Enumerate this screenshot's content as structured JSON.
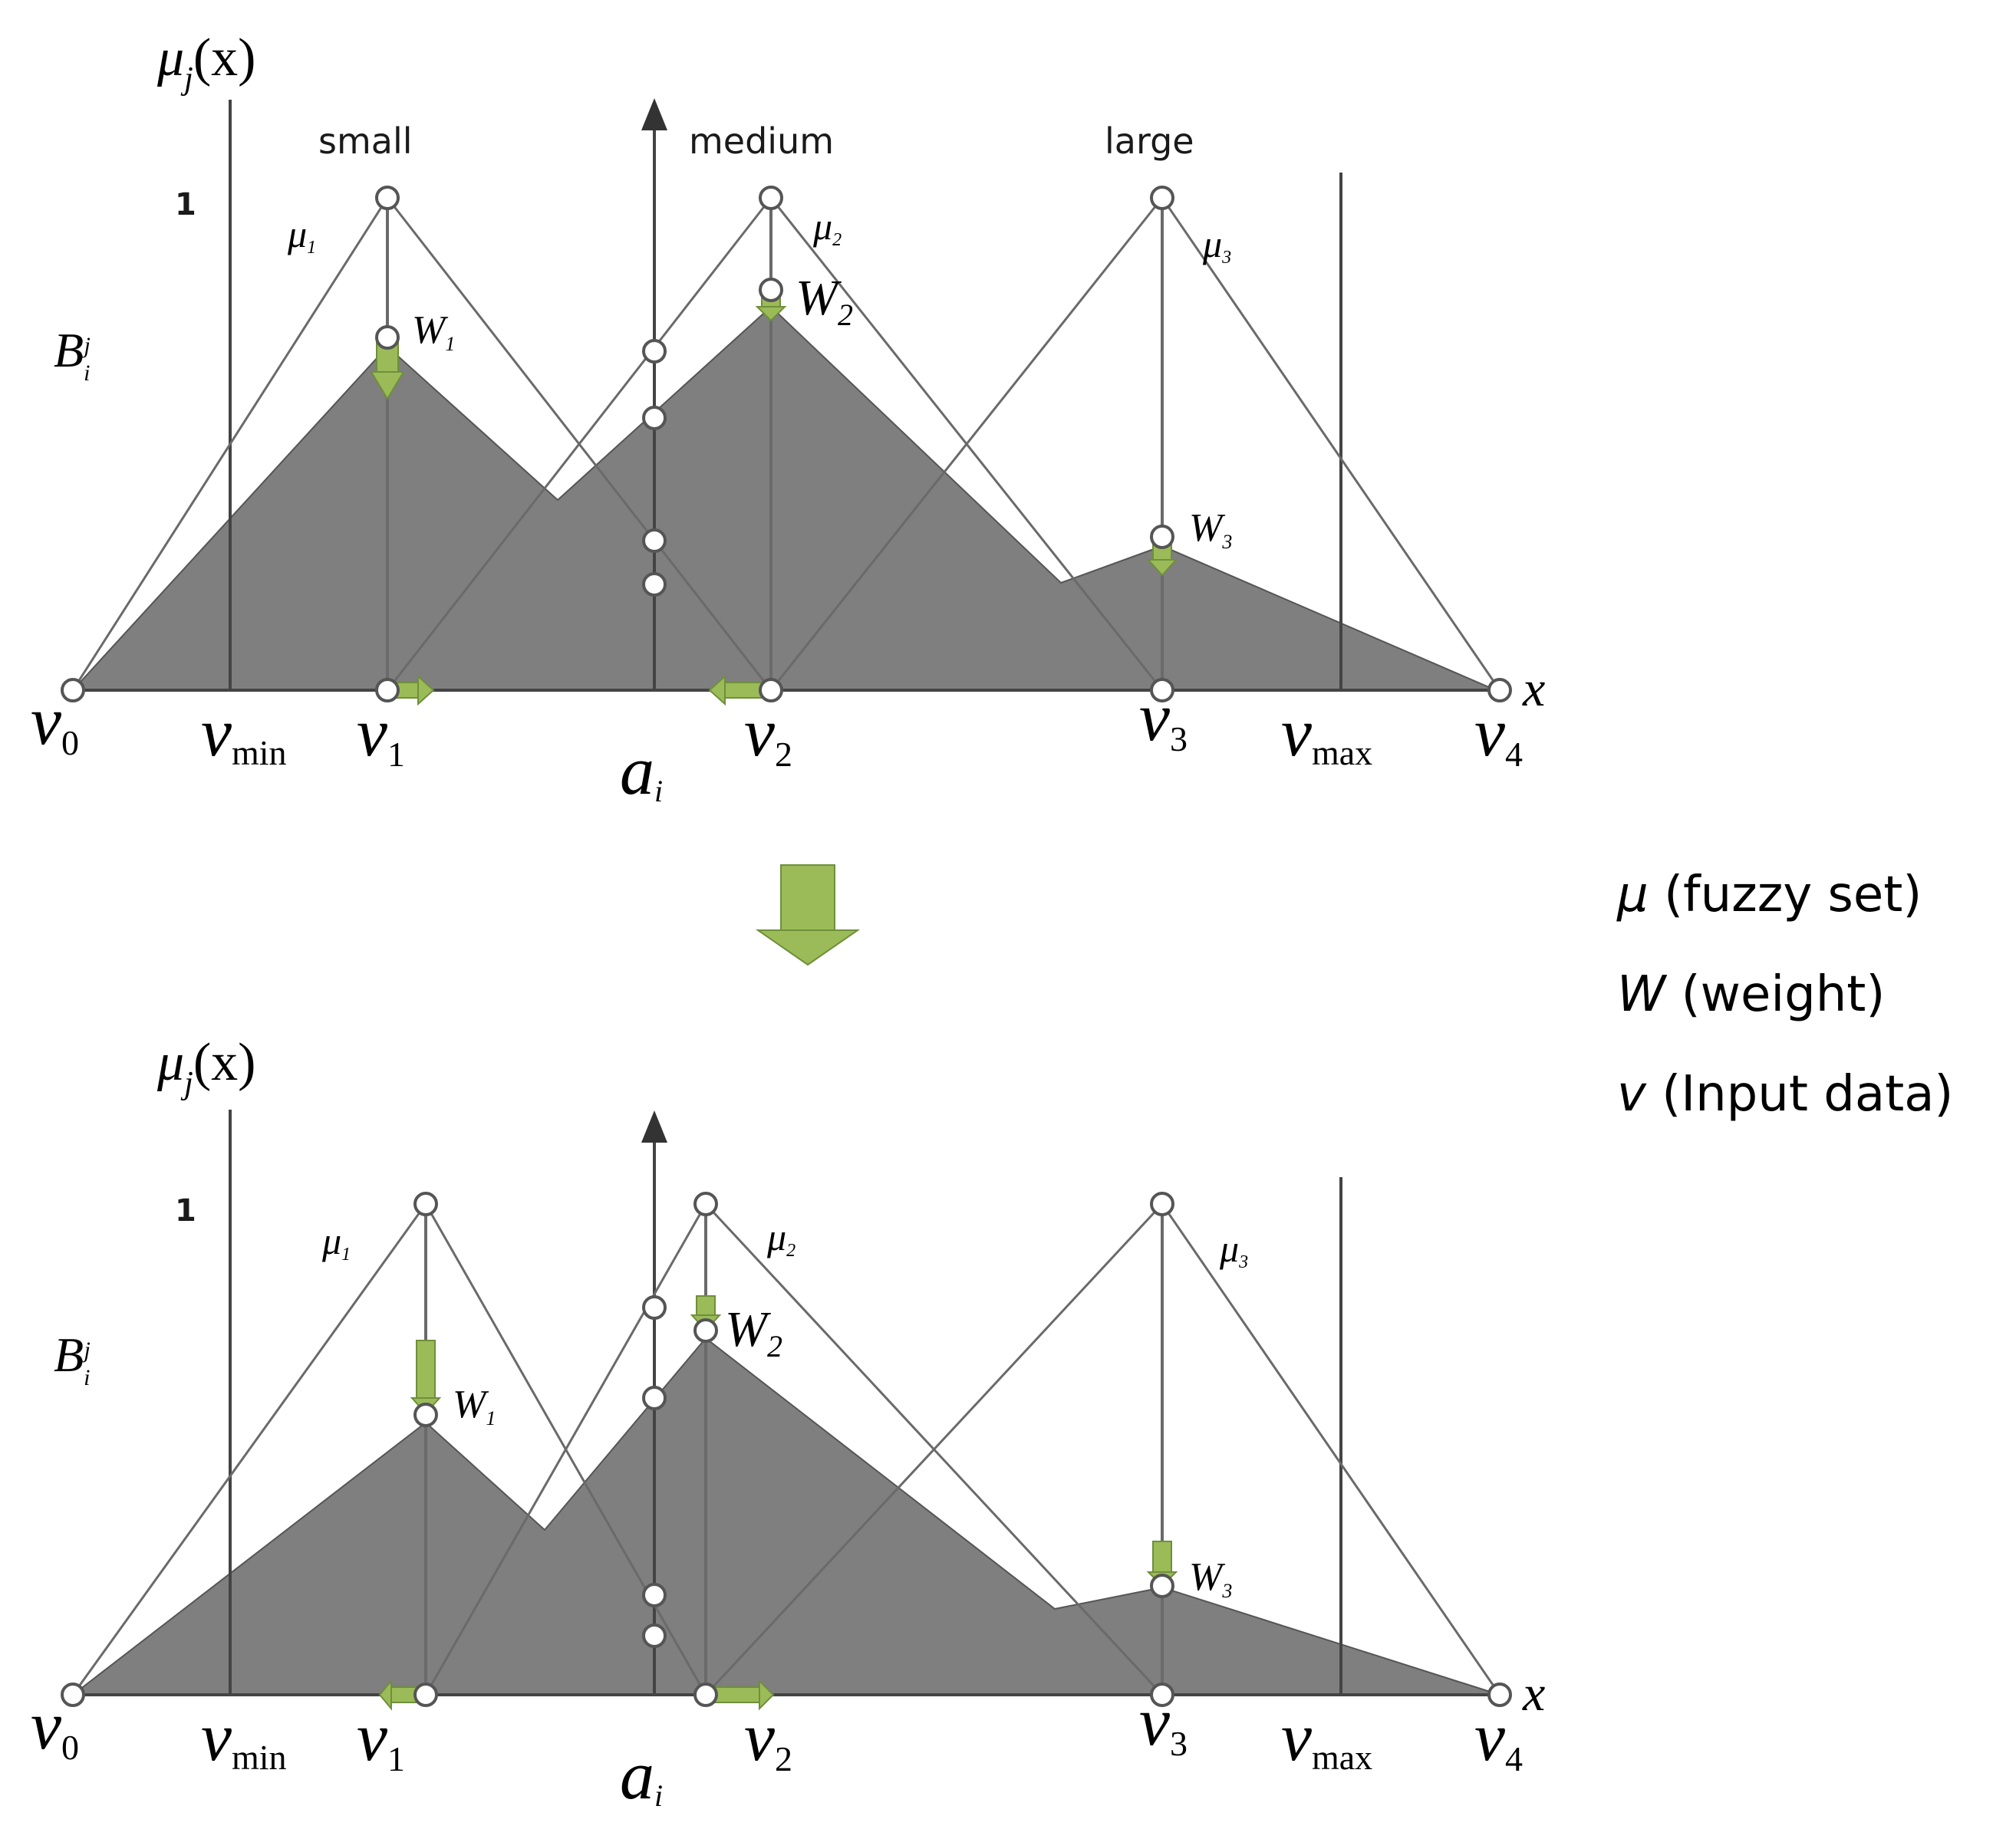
{
  "colors": {
    "fill": "#7f7f7f",
    "line": "#6a6a6a",
    "axis": "#333333",
    "arrow_green": "#9bbb59",
    "arrow_green_dark": "#6f8f3a",
    "node": "#ffffff"
  },
  "panels": [
    {
      "axis_label_y": "μ",
      "axis_label_y_sub": "j",
      "axis_label_y_tail": "(x)",
      "one_label": "1",
      "b_label": "B",
      "b_sub": "i",
      "b_sup": "j",
      "x_label": "x",
      "a_label": "a",
      "a_sub": "i",
      "set_labels": [
        "small",
        "medium",
        "large"
      ],
      "mu_labels": [
        {
          "base": "μ",
          "sub": "1"
        },
        {
          "base": "μ",
          "sub": "2"
        },
        {
          "base": "μ",
          "sub": "3"
        }
      ],
      "w_labels": [
        {
          "base": "W",
          "sub": "1"
        },
        {
          "base": "W",
          "sub": "2"
        },
        {
          "base": "W",
          "sub": "3"
        }
      ],
      "v_labels": [
        {
          "base": "v",
          "sub": "0"
        },
        {
          "base": "v",
          "sub": "min"
        },
        {
          "base": "v",
          "sub": "1"
        },
        {
          "base": "v",
          "sub": "2"
        },
        {
          "base": "v",
          "sub": "3"
        },
        {
          "base": "v",
          "sub": "max"
        },
        {
          "base": "v",
          "sub": "4"
        }
      ]
    },
    {
      "axis_label_y": "μ",
      "axis_label_y_sub": "j",
      "axis_label_y_tail": "(x)",
      "one_label": "1",
      "b_label": "B",
      "b_sub": "i",
      "b_sup": "j",
      "x_label": "x",
      "a_label": "a",
      "a_sub": "i",
      "mu_labels": [
        {
          "base": "μ",
          "sub": "1"
        },
        {
          "base": "μ",
          "sub": "2"
        },
        {
          "base": "μ",
          "sub": "3"
        }
      ],
      "w_labels": [
        {
          "base": "W",
          "sub": "1"
        },
        {
          "base": "W",
          "sub": "2"
        },
        {
          "base": "W",
          "sub": "3"
        }
      ],
      "v_labels": [
        {
          "base": "v",
          "sub": "0"
        },
        {
          "base": "v",
          "sub": "min"
        },
        {
          "base": "v",
          "sub": "1"
        },
        {
          "base": "v",
          "sub": "2"
        },
        {
          "base": "v",
          "sub": "3"
        },
        {
          "base": "v",
          "sub": "max"
        },
        {
          "base": "v",
          "sub": "4"
        }
      ]
    }
  ],
  "legend": [
    {
      "symbol": "μ",
      "text": " (fuzzy set)"
    },
    {
      "symbol": "W",
      "text": " (weight)"
    },
    {
      "symbol": "v",
      "text": " (Input data)"
    }
  ]
}
